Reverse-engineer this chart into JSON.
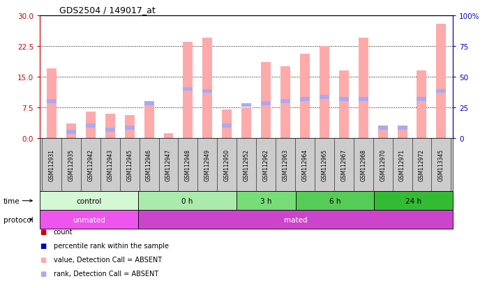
{
  "title": "GDS2504 / 149017_at",
  "samples": [
    "GSM112931",
    "GSM112935",
    "GSM112942",
    "GSM112943",
    "GSM112945",
    "GSM112946",
    "GSM112947",
    "GSM112948",
    "GSM112949",
    "GSM112950",
    "GSM112952",
    "GSM112962",
    "GSM112963",
    "GSM112964",
    "GSM112965",
    "GSM112967",
    "GSM112968",
    "GSM112970",
    "GSM112971",
    "GSM112972",
    "GSM113345"
  ],
  "values_absent": [
    17.0,
    3.5,
    6.5,
    6.0,
    5.5,
    9.0,
    1.2,
    23.5,
    24.5,
    7.0,
    7.5,
    18.5,
    17.5,
    20.5,
    22.5,
    16.5,
    24.5,
    2.5,
    2.5,
    16.5,
    28.0
  ],
  "ranks_absent_left": [
    9.0,
    1.5,
    3.0,
    2.0,
    2.5,
    8.5,
    null,
    12.0,
    11.5,
    3.0,
    8.0,
    8.5,
    9.0,
    9.5,
    10.0,
    9.5,
    9.5,
    2.5,
    2.5,
    9.5,
    11.5
  ],
  "ylim_left": [
    0,
    30
  ],
  "ylim_right": [
    0,
    100
  ],
  "yticks_left": [
    0,
    7.5,
    15,
    22.5,
    30
  ],
  "yticks_right": [
    0,
    25,
    50,
    75,
    100
  ],
  "ytick_labels_right": [
    "0",
    "25",
    "50",
    "75",
    "100%"
  ],
  "time_groups": [
    {
      "label": "control",
      "start": 0,
      "end": 5,
      "color": "#d4f7d4"
    },
    {
      "label": "0 h",
      "start": 5,
      "end": 10,
      "color": "#aaeaaa"
    },
    {
      "label": "3 h",
      "start": 10,
      "end": 13,
      "color": "#77dd77"
    },
    {
      "label": "6 h",
      "start": 13,
      "end": 17,
      "color": "#55cc55"
    },
    {
      "label": "24 h",
      "start": 17,
      "end": 21,
      "color": "#33bb33"
    }
  ],
  "protocol_groups": [
    {
      "label": "unmated",
      "start": 0,
      "end": 5,
      "color": "#ee55ee"
    },
    {
      "label": "mated",
      "start": 5,
      "end": 21,
      "color": "#cc44cc"
    }
  ],
  "absent_bar_color": "#ffaaaa",
  "absent_rank_color": "#aaaaee",
  "bg_color": "#ffffff",
  "left_tick_color": "#cc0000",
  "right_tick_color": "#0000cc",
  "sample_bg_color": "#cccccc",
  "grid_color": "black",
  "rank_bar_height": 0.9
}
